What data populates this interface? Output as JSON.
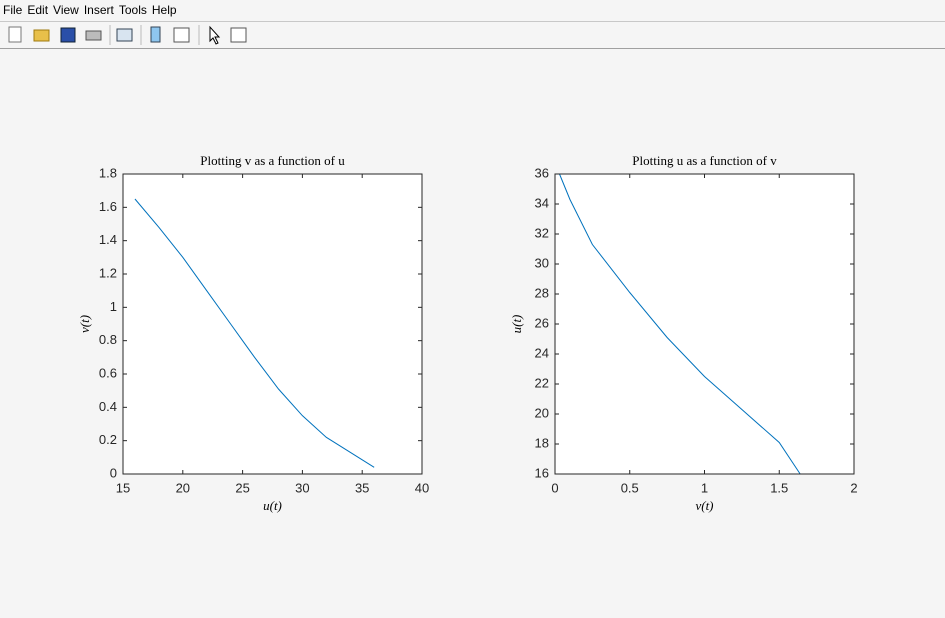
{
  "menu": [
    "File",
    "Edit",
    "View",
    "Insert",
    "Tools",
    "Help"
  ],
  "chart_data": [
    {
      "type": "line",
      "title": "Plotting v as a function of u",
      "x_label": "u(t)",
      "y_label": "v(t)",
      "x": [
        16,
        18,
        20,
        22,
        24,
        25,
        26,
        28,
        30,
        32,
        34,
        36
      ],
      "values": [
        1.65,
        1.48,
        1.3,
        1.1,
        0.9,
        0.8,
        0.7,
        0.51,
        0.35,
        0.22,
        0.13,
        0.04
      ],
      "color": "#0072bd",
      "grid": false,
      "xlim": [
        15,
        40
      ],
      "xticks": [
        15,
        20,
        25,
        30,
        35,
        40
      ],
      "ylim": [
        0,
        1.8
      ],
      "yticks": [
        0,
        0.2,
        0.4,
        0.6,
        0.8,
        1,
        1.2,
        1.4,
        1.6,
        1.8
      ]
    },
    {
      "type": "line",
      "title": "Plotting u as a function of v",
      "x_label": "v(t)",
      "y_label": "u(t)",
      "x": [
        0.03,
        0.1,
        0.25,
        0.5,
        0.75,
        1,
        1.25,
        1.5,
        1.64
      ],
      "values": [
        36,
        34.3,
        31.3,
        28.1,
        25.1,
        22.5,
        20.3,
        18.1,
        16
      ],
      "color": "#0072bd",
      "grid": false,
      "xlim": [
        0,
        2
      ],
      "xticks": [
        0,
        0.5,
        1,
        1.5,
        2
      ],
      "ylim": [
        16,
        36
      ],
      "yticks": [
        16,
        18,
        20,
        22,
        24,
        26,
        28,
        30,
        32,
        34,
        36
      ]
    }
  ]
}
